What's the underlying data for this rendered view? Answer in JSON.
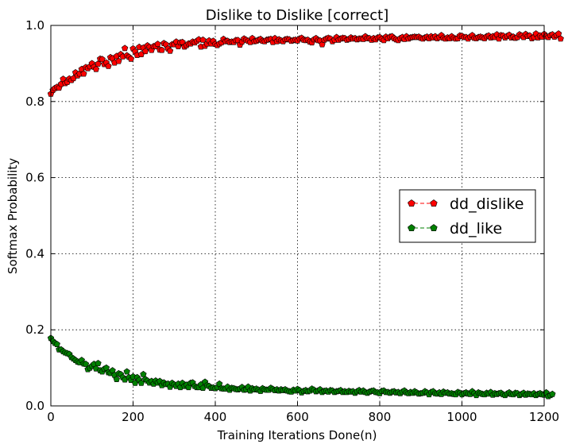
{
  "chart_data": {
    "type": "scatter",
    "title": "Dislike to Dislike [correct]",
    "xlabel": "Training Iterations Done(n)",
    "ylabel": "Softmax Probability",
    "xlim": [
      0,
      1200
    ],
    "ylim": [
      0.0,
      1.0
    ],
    "xticks": [
      0,
      200,
      400,
      600,
      800,
      1000,
      1200
    ],
    "xtick_labels": [
      "0",
      "200",
      "400",
      "600",
      "800",
      "1000",
      "1200"
    ],
    "yticks": [
      0.0,
      0.2,
      0.4,
      0.6,
      0.8,
      1.0
    ],
    "ytick_labels": [
      "0.0",
      "0.2",
      "0.4",
      "0.6",
      "0.8",
      "1.0"
    ],
    "grid": true,
    "legend_position": "center-right",
    "x_step": 5,
    "series": [
      {
        "name": "dd_dislike",
        "color": "#ff0000",
        "marker": "pentagon",
        "line": "dashed",
        "values": [
          0.82,
          0.83,
          0.835,
          0.838,
          0.836,
          0.846,
          0.859,
          0.848,
          0.851,
          0.86,
          0.856,
          0.861,
          0.876,
          0.868,
          0.873,
          0.885,
          0.873,
          0.89,
          0.887,
          0.892,
          0.9,
          0.891,
          0.885,
          0.899,
          0.912,
          0.911,
          0.898,
          0.902,
          0.893,
          0.916,
          0.913,
          0.902,
          0.919,
          0.906,
          0.924,
          0.918,
          0.94,
          0.921,
          0.917,
          0.912,
          0.939,
          0.931,
          0.922,
          0.943,
          0.924,
          0.941,
          0.932,
          0.947,
          0.943,
          0.935,
          0.945,
          0.945,
          0.951,
          0.936,
          0.935,
          0.953,
          0.95,
          0.939,
          0.933,
          0.95,
          0.95,
          0.957,
          0.945,
          0.955,
          0.956,
          0.944,
          0.948,
          0.952,
          0.952,
          0.957,
          0.955,
          0.959,
          0.963,
          0.944,
          0.962,
          0.946,
          0.952,
          0.96,
          0.952,
          0.959,
          0.951,
          0.948,
          0.952,
          0.955,
          0.964,
          0.958,
          0.959,
          0.956,
          0.957,
          0.956,
          0.961,
          0.961,
          0.949,
          0.957,
          0.965,
          0.962,
          0.959,
          0.956,
          0.966,
          0.958,
          0.959,
          0.962,
          0.964,
          0.959,
          0.958,
          0.962,
          0.963,
          0.964,
          0.956,
          0.966,
          0.958,
          0.963,
          0.96,
          0.958,
          0.963,
          0.964,
          0.963,
          0.959,
          0.961,
          0.962,
          0.96,
          0.965,
          0.967,
          0.962,
          0.961,
          0.962,
          0.957,
          0.955,
          0.963,
          0.966,
          0.961,
          0.96,
          0.95,
          0.962,
          0.965,
          0.967,
          0.965,
          0.958,
          0.962,
          0.969,
          0.962,
          0.965,
          0.967,
          0.966,
          0.962,
          0.964,
          0.968,
          0.965,
          0.966,
          0.963,
          0.965,
          0.965,
          0.964,
          0.971,
          0.966,
          0.966,
          0.962,
          0.966,
          0.963,
          0.968,
          0.969,
          0.964,
          0.961,
          0.97,
          0.966,
          0.97,
          0.971,
          0.966,
          0.963,
          0.961,
          0.966,
          0.969,
          0.964,
          0.971,
          0.965,
          0.968,
          0.969,
          0.97,
          0.969,
          0.97,
          0.967,
          0.965,
          0.968,
          0.97,
          0.966,
          0.971,
          0.968,
          0.971,
          0.966,
          0.969,
          0.974,
          0.967,
          0.965,
          0.968,
          0.966,
          0.971,
          0.967,
          0.965,
          0.966,
          0.973,
          0.972,
          0.969,
          0.969,
          0.965,
          0.97,
          0.974,
          0.967,
          0.966,
          0.969,
          0.97,
          0.968,
          0.966,
          0.971,
          0.973,
          0.968,
          0.971,
          0.969,
          0.976,
          0.965,
          0.974,
          0.973,
          0.968,
          0.972,
          0.975,
          0.968,
          0.97,
          0.967,
          0.969,
          0.976,
          0.973,
          0.969,
          0.977,
          0.972,
          0.973,
          0.966,
          0.969,
          0.978,
          0.968,
          0.973,
          0.97,
          0.977,
          0.971,
          0.969,
          0.974,
          0.976,
          0.97,
          0.974,
          0.978,
          0.965
        ]
      },
      {
        "name": "dd_like",
        "color": "#008000",
        "marker": "pentagon",
        "line": "dashed",
        "values": [
          0.178,
          0.17,
          0.165,
          0.162,
          0.148,
          0.148,
          0.143,
          0.14,
          0.138,
          0.136,
          0.128,
          0.124,
          0.12,
          0.116,
          0.114,
          0.12,
          0.111,
          0.11,
          0.096,
          0.1,
          0.105,
          0.11,
          0.098,
          0.112,
          0.093,
          0.09,
          0.097,
          0.1,
          0.088,
          0.086,
          0.093,
          0.081,
          0.07,
          0.085,
          0.083,
          0.075,
          0.069,
          0.09,
          0.075,
          0.068,
          0.077,
          0.06,
          0.075,
          0.068,
          0.06,
          0.083,
          0.07,
          0.066,
          0.061,
          0.065,
          0.058,
          0.066,
          0.061,
          0.065,
          0.054,
          0.061,
          0.057,
          0.058,
          0.05,
          0.06,
          0.056,
          0.052,
          0.058,
          0.049,
          0.06,
          0.052,
          0.055,
          0.049,
          0.06,
          0.061,
          0.052,
          0.049,
          0.049,
          0.056,
          0.047,
          0.063,
          0.054,
          0.052,
          0.047,
          0.048,
          0.046,
          0.049,
          0.058,
          0.046,
          0.045,
          0.045,
          0.05,
          0.042,
          0.047,
          0.046,
          0.044,
          0.043,
          0.045,
          0.049,
          0.042,
          0.043,
          0.05,
          0.04,
          0.046,
          0.043,
          0.045,
          0.042,
          0.039,
          0.046,
          0.043,
          0.042,
          0.042,
          0.047,
          0.044,
          0.041,
          0.043,
          0.04,
          0.043,
          0.041,
          0.043,
          0.04,
          0.038,
          0.037,
          0.042,
          0.04,
          0.044,
          0.041,
          0.035,
          0.039,
          0.041,
          0.038,
          0.04,
          0.045,
          0.042,
          0.038,
          0.04,
          0.043,
          0.036,
          0.039,
          0.04,
          0.037,
          0.041,
          0.04,
          0.036,
          0.038,
          0.039,
          0.041,
          0.036,
          0.038,
          0.036,
          0.039,
          0.037,
          0.038,
          0.034,
          0.038,
          0.041,
          0.037,
          0.04,
          0.036,
          0.034,
          0.037,
          0.039,
          0.04,
          0.036,
          0.035,
          0.033,
          0.039,
          0.04,
          0.036,
          0.036,
          0.034,
          0.037,
          0.038,
          0.035,
          0.036,
          0.033,
          0.037,
          0.04,
          0.035,
          0.033,
          0.036,
          0.034,
          0.038,
          0.035,
          0.032,
          0.033,
          0.034,
          0.038,
          0.035,
          0.03,
          0.036,
          0.038,
          0.033,
          0.032,
          0.035,
          0.031,
          0.037,
          0.034,
          0.035,
          0.032,
          0.033,
          0.031,
          0.03,
          0.036,
          0.034,
          0.03,
          0.033,
          0.035,
          0.032,
          0.031,
          0.038,
          0.033,
          0.028,
          0.035,
          0.033,
          0.031,
          0.03,
          0.034,
          0.032,
          0.036,
          0.029,
          0.033,
          0.031,
          0.033,
          0.034,
          0.03,
          0.028,
          0.032,
          0.035,
          0.031,
          0.03,
          0.034,
          0.033,
          0.028,
          0.031,
          0.034,
          0.029,
          0.032,
          0.031,
          0.03,
          0.033,
          0.028,
          0.031,
          0.033,
          0.03,
          0.029,
          0.035,
          0.025,
          0.028,
          0.031
        ]
      }
    ]
  }
}
